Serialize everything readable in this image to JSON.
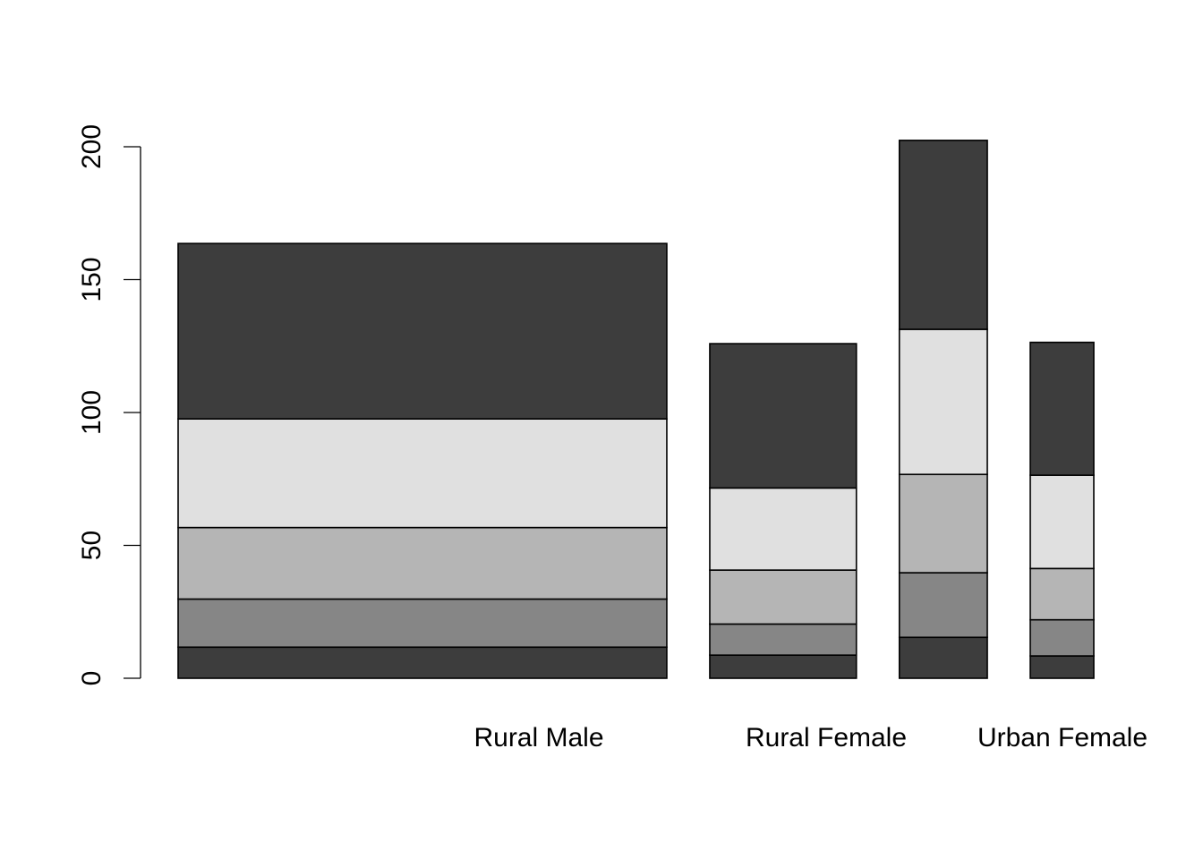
{
  "chart_data": {
    "type": "bar",
    "stacked": true,
    "variable_width": true,
    "title": "",
    "xlabel": "",
    "ylabel": "",
    "ylim": [
      0,
      200
    ],
    "y_ticks": [
      0,
      50,
      100,
      150,
      200
    ],
    "grid": false,
    "legend": "none",
    "categories": [
      "Rural Male",
      "Rural Female",
      "",
      "Urban Female"
    ],
    "category_labels_shown": [
      "Rural Male",
      "Rural Female",
      "Urban Female"
    ],
    "relative_widths": [
      1.0,
      0.3,
      0.18,
      0.13
    ],
    "segment_colors": [
      "#3d3d3d",
      "#868686",
      "#b5b5b5",
      "#e0e0e0",
      "#3d3d3d"
    ],
    "segments": [
      [
        11.7,
        18.1,
        26.9,
        40.9,
        66.0
      ],
      [
        8.7,
        11.7,
        20.3,
        30.9,
        54.3
      ],
      [
        15.4,
        24.3,
        37.0,
        54.6,
        71.1
      ],
      [
        8.4,
        13.6,
        19.3,
        35.1,
        50.0
      ]
    ],
    "totals": [
      163.6,
      125.9,
      202.4,
      126.4
    ]
  }
}
